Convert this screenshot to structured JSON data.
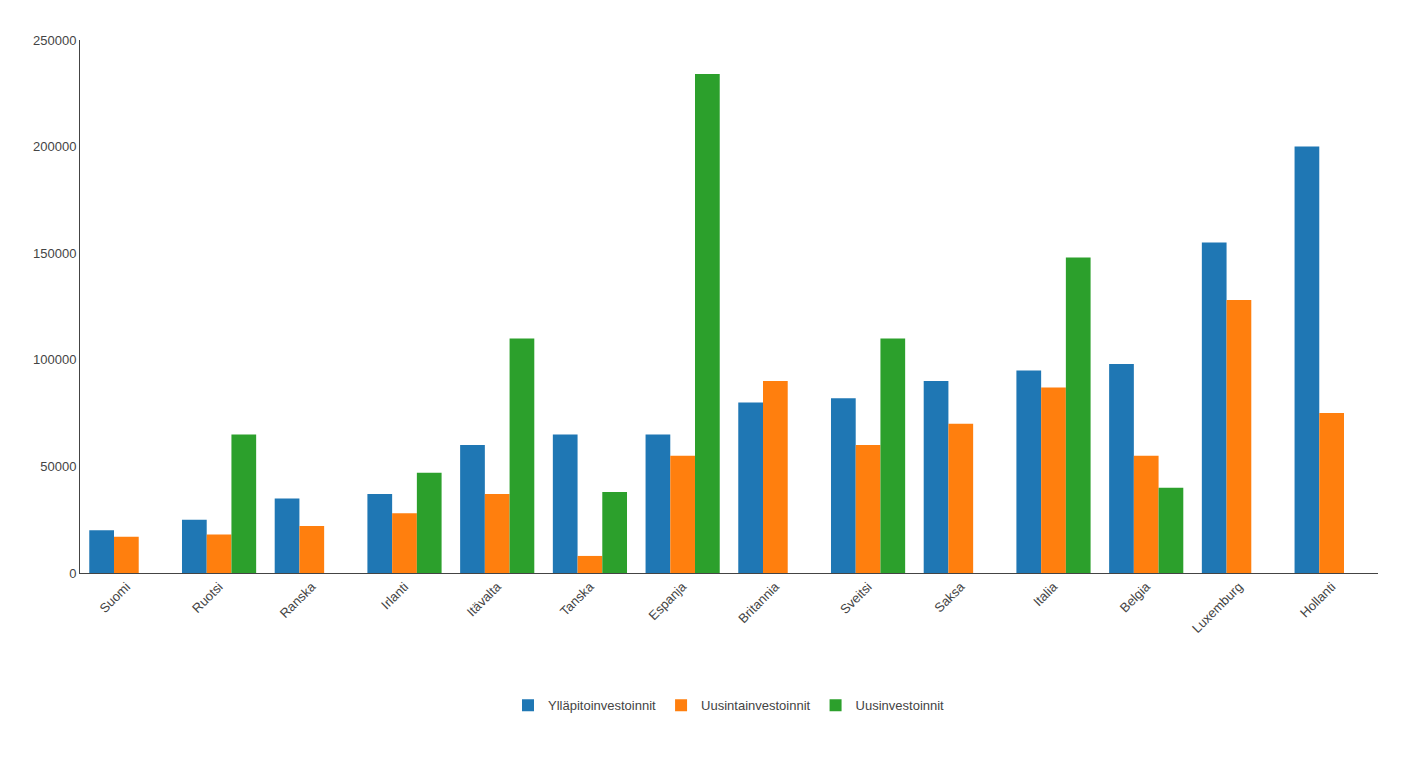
{
  "chart_data": {
    "type": "bar",
    "categories": [
      "Suomi",
      "Ruotsi",
      "Ranska",
      "Irlanti",
      "Itävalta",
      "Tanska",
      "Espanja",
      "Britannia",
      "Sveitsi",
      "Saksa",
      "Italia",
      "Belgia",
      "Luxemburg",
      "Hollanti"
    ],
    "series": [
      {
        "name": "Ylläpitoinvestoinnit",
        "values": [
          20000,
          25000,
          35000,
          37000,
          60000,
          65000,
          65000,
          80000,
          82000,
          90000,
          95000,
          98000,
          155000,
          200000
        ]
      },
      {
        "name": "Uusintainvestoinnit",
        "values": [
          17000,
          18000,
          22000,
          28000,
          37000,
          8000,
          55000,
          90000,
          60000,
          70000,
          87000,
          55000,
          128000,
          75000
        ]
      },
      {
        "name": "Uusinvestoinnit",
        "values": [
          0,
          65000,
          0,
          47000,
          110000,
          38000,
          234000,
          0,
          110000,
          0,
          148000,
          40000,
          0,
          0
        ]
      }
    ],
    "ylim": [
      0,
      250000
    ],
    "yticks": [
      0,
      50000,
      100000,
      150000,
      200000,
      250000
    ],
    "grid": false,
    "legend": "bottom"
  }
}
